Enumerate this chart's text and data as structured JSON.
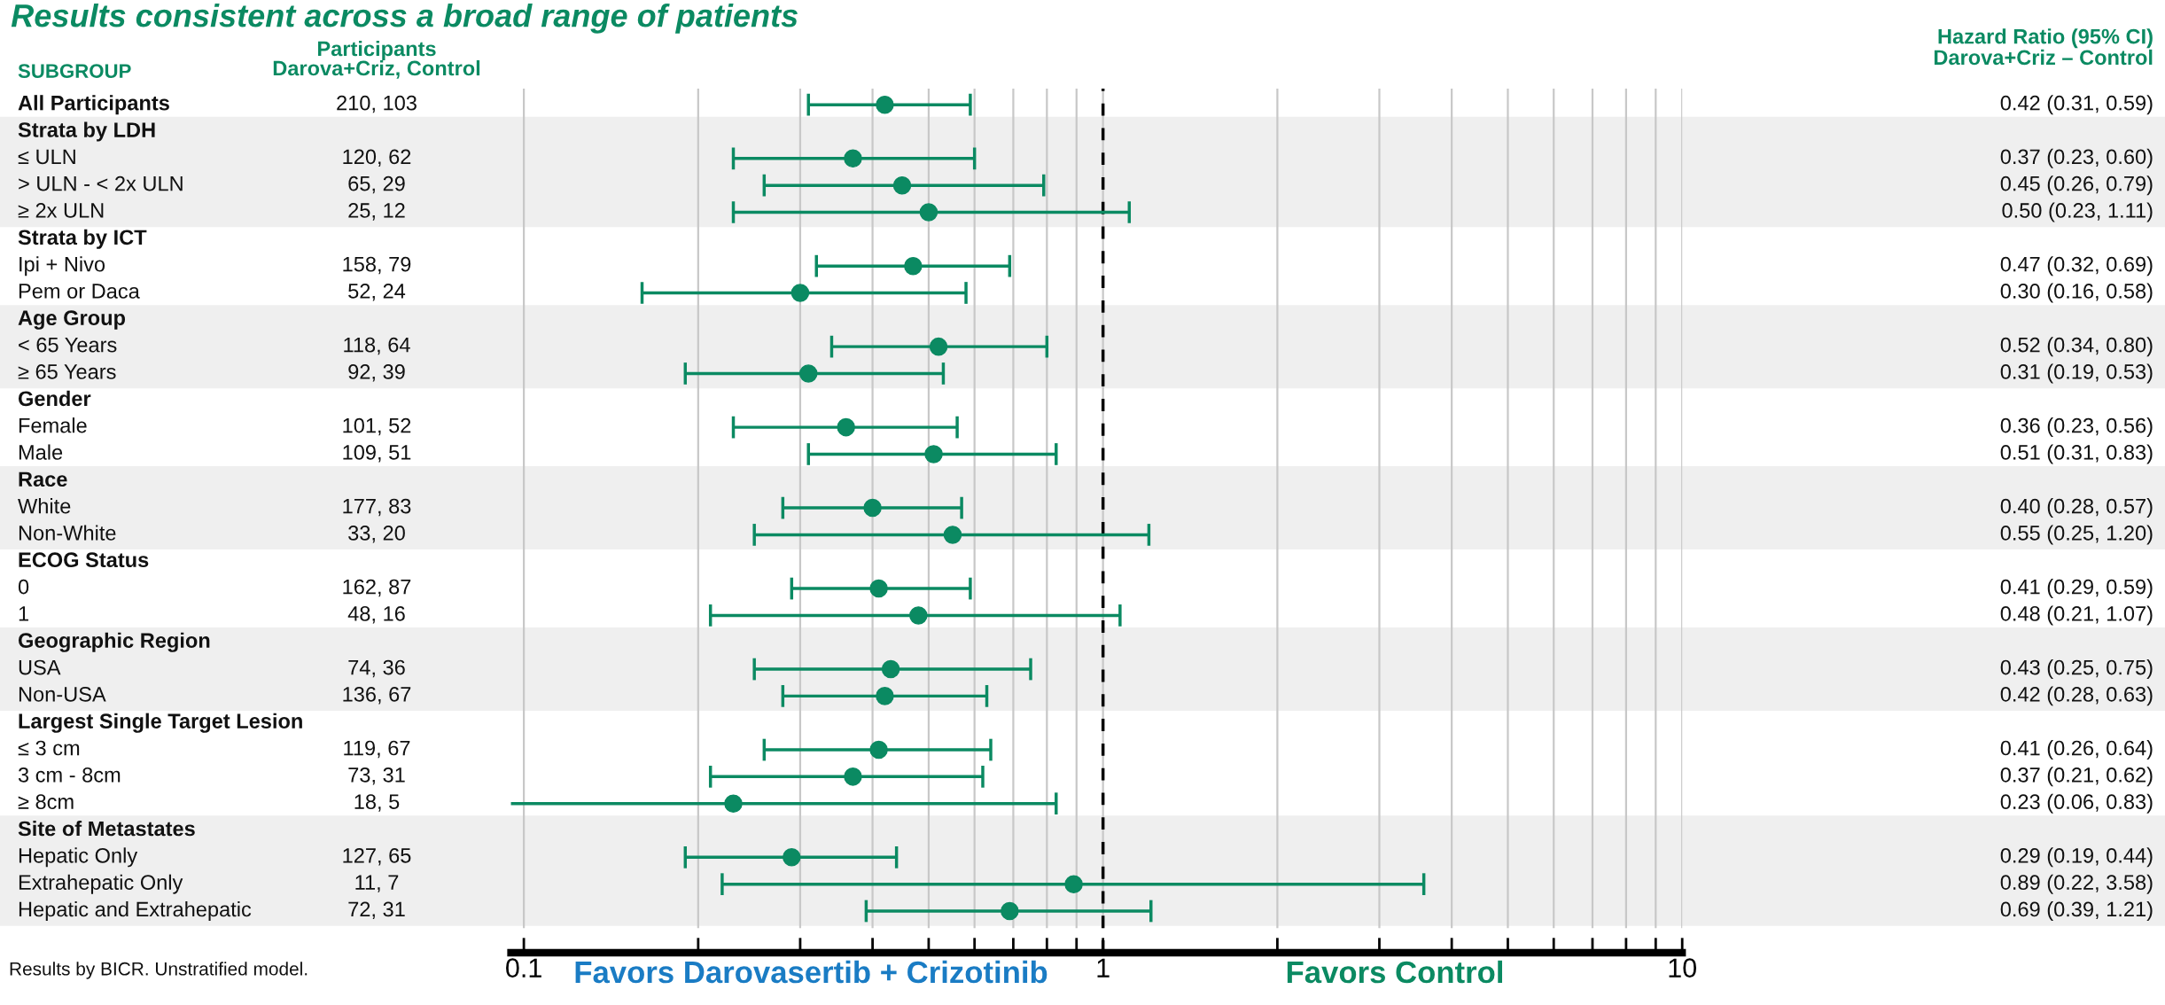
{
  "chart_data": {
    "type": "scatter",
    "title": "Results consistent across a broad range of patients",
    "ylabel": "SUBGROUP",
    "y2label": "Participants\nDarova+Criz, Control",
    "annotations": [
      "Hazard Ratio (95% CI)\nDarova+Criz – Control",
      "Favors Darovasertib + Crizotinib",
      "Favors Control",
      "Results by BICR. Unstratified model."
    ],
    "categories": [
      "All Participants",
      "Strata by LDH",
      "≤ ULN",
      "> ULN - < 2x ULN",
      "≥ 2x ULN",
      "Strata by ICT",
      "Ipi + Nivo",
      "Pem or Daca",
      "Age Group",
      "< 65 Years",
      "≥ 65 Years",
      "Gender",
      "Female",
      "Male",
      "Race",
      "White",
      "Non-White",
      "ECOG Status",
      "0",
      "1",
      "Geographic Region",
      "USA",
      "Non-USA",
      "Largest Single Target Lesion",
      "≤ 3 cm",
      "3 cm - 8cm",
      "≥ 8cm",
      "Site of Metastates",
      "Hepatic Only",
      "Extrahepatic Only",
      "Hepatic and Extrahepatic"
    ],
    "y2_categories": [
      "210, 103",
      null,
      "120, 62",
      "65, 29",
      "25, 12",
      null,
      "158, 79",
      "52, 24",
      null,
      "118, 64",
      "92, 39",
      null,
      "101, 52",
      "109, 51",
      null,
      "177, 83",
      "33, 20",
      null,
      "162, 87",
      "48, 16",
      null,
      "74, 36",
      "136, 67",
      null,
      "119, 67",
      "73, 31",
      "18, 5",
      null,
      "127, 65",
      "11, 7",
      "72, 31"
    ],
    "orientation": "horizontal",
    "series": [
      {
        "color": "#0b8a62",
        "values": [
          0.42,
          null,
          0.37,
          0.45,
          0.5,
          null,
          0.47,
          0.3,
          null,
          0.52,
          0.31,
          null,
          0.36,
          0.51,
          null,
          0.4,
          0.55,
          null,
          0.41,
          0.48,
          null,
          0.43,
          0.42,
          null,
          0.41,
          0.37,
          0.23,
          null,
          0.29,
          0.89,
          0.69
        ],
        "errors": [
          [
            0.31,
            0.59
          ],
          null,
          [
            0.23,
            0.6
          ],
          [
            0.26,
            0.79
          ],
          [
            0.23,
            1.11
          ],
          null,
          [
            0.32,
            0.69
          ],
          [
            0.16,
            0.58
          ],
          null,
          [
            0.34,
            0.8
          ],
          [
            0.19,
            0.53
          ],
          null,
          [
            0.23,
            0.56
          ],
          [
            0.31,
            0.83
          ],
          null,
          [
            0.28,
            0.57
          ],
          [
            0.25,
            1.2
          ],
          null,
          [
            0.29,
            0.59
          ],
          [
            0.21,
            1.07
          ],
          null,
          [
            0.25,
            0.75
          ],
          [
            0.28,
            0.63
          ],
          null,
          [
            0.26,
            0.64
          ],
          [
            0.21,
            0.62
          ],
          [
            0.06,
            0.83
          ],
          null,
          [
            0.19,
            0.44
          ],
          [
            0.22,
            3.58
          ],
          [
            0.39,
            1.21
          ]
        ],
        "value_labels": [
          "0.42 (0.31, 0.59)",
          null,
          "0.37 (0.23, 0.60)",
          "0.45 (0.26, 0.79)",
          "0.50 (0.23, 1.11)",
          null,
          "0.47 (0.32, 0.69)",
          "0.30 (0.16, 0.58)",
          null,
          "0.52 (0.34, 0.80)",
          "0.31 (0.19, 0.53)",
          null,
          "0.36 (0.23, 0.56)",
          "0.51 (0.31, 0.83)",
          null,
          "0.40 (0.28, 0.57)",
          "0.55 (0.25, 1.20)",
          null,
          "0.41 (0.29, 0.59)",
          "0.48 (0.21, 1.07)",
          null,
          "0.43 (0.25, 0.75)",
          "0.42 (0.28, 0.63)",
          null,
          "0.41 (0.26, 0.64)",
          "0.37 (0.21, 0.62)",
          "0.23 (0.06, 0.83)",
          null,
          "0.29 (0.19, 0.44)",
          "0.89 (0.22, 3.58)",
          "0.69 (0.39, 1.21)"
        ]
      }
    ],
    "log": "x",
    "xlim": [
      0.095,
      10
    ],
    "xticks": [
      0.1,
      {
        "value": 0.2,
        "label": null
      },
      {
        "value": 0.3,
        "label": null
      },
      {
        "value": 0.4,
        "label": null
      },
      {
        "value": 0.5,
        "label": null
      },
      {
        "value": 0.6,
        "label": null
      },
      {
        "value": 0.7,
        "label": null
      },
      {
        "value": 0.8,
        "label": null
      },
      {
        "value": 0.9,
        "label": null
      },
      1,
      {
        "value": 2,
        "label": null
      },
      {
        "value": 3,
        "label": null
      },
      {
        "value": 4,
        "label": null
      },
      {
        "value": 5,
        "label": null
      },
      {
        "value": 6,
        "label": null
      },
      {
        "value": 7,
        "label": null
      },
      {
        "value": 8,
        "label": null
      },
      {
        "value": 9,
        "label": null
      },
      10
    ],
    "grid": "x",
    "marker": "circle",
    "tick_labels": "x",
    "ref_lines": [
      {
        "axis": "x",
        "value": 1,
        "label": null,
        "color": "#000000",
        "line_style": "dashed"
      }
    ]
  }
}
